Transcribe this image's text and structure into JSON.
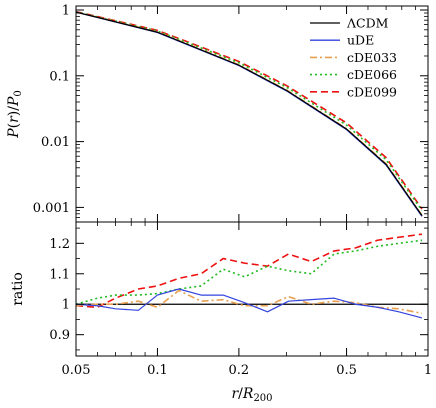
{
  "chart_data": [
    {
      "type": "line",
      "panel": "top",
      "ylabel": "P(r)/P0",
      "xscale": "log",
      "yscale": "log",
      "xlim": [
        0.05,
        1
      ],
      "ylim": [
        0.0006,
        1.15
      ],
      "yticks": [
        {
          "value": 1,
          "label": "1"
        },
        {
          "value": 0.1,
          "label": "0.1"
        },
        {
          "value": 0.01,
          "label": "0.01"
        },
        {
          "value": 0.001,
          "label": "0.001"
        }
      ],
      "legend_position": "top-right",
      "series": [
        {
          "name": "ΛCDM",
          "color": "#000000",
          "dash": "",
          "x": [
            0.05,
            0.1,
            0.2,
            0.3,
            0.5,
            0.7,
            0.95
          ],
          "y": [
            0.93,
            0.46,
            0.145,
            0.06,
            0.0155,
            0.0045,
            0.00075
          ]
        },
        {
          "name": "uDE",
          "color": "#3344dd",
          "dash": "",
          "x": [
            0.05,
            0.1,
            0.2,
            0.3,
            0.5,
            0.7,
            0.95
          ],
          "y": [
            0.93,
            0.455,
            0.143,
            0.059,
            0.0152,
            0.0044,
            0.00073
          ]
        },
        {
          "name": "cDE033",
          "color": "#e8a050",
          "dash": "7,3,2,3",
          "x": [
            0.05,
            0.1,
            0.2,
            0.3,
            0.5,
            0.7,
            0.95
          ],
          "y": [
            0.93,
            0.465,
            0.147,
            0.061,
            0.0157,
            0.0046,
            0.00076
          ]
        },
        {
          "name": "cDE066",
          "color": "#22bb22",
          "dash": "2,3",
          "x": [
            0.05,
            0.1,
            0.2,
            0.3,
            0.5,
            0.7,
            0.95
          ],
          "y": [
            0.94,
            0.48,
            0.158,
            0.067,
            0.0178,
            0.0053,
            0.0009
          ]
        },
        {
          "name": "cDE099",
          "color": "#ee1111",
          "dash": "7,4",
          "x": [
            0.05,
            0.1,
            0.2,
            0.3,
            0.5,
            0.7,
            0.95
          ],
          "y": [
            0.945,
            0.49,
            0.165,
            0.071,
            0.0192,
            0.0057,
            0.00095
          ]
        }
      ]
    },
    {
      "type": "line",
      "panel": "bottom",
      "xlabel": "r/R200",
      "ylabel": "ratio",
      "xscale": "log",
      "xlim": [
        0.05,
        1
      ],
      "ylim": [
        0.83,
        1.27
      ],
      "xticks": [
        {
          "value": 0.05,
          "label": "0.05"
        },
        {
          "value": 0.1,
          "label": "0.1"
        },
        {
          "value": 0.2,
          "label": "0.2"
        },
        {
          "value": 0.5,
          "label": "0.5"
        },
        {
          "value": 1,
          "label": "1"
        }
      ],
      "yticks": [
        {
          "value": 0.9,
          "label": "0.9"
        },
        {
          "value": 1.0,
          "label": "1"
        },
        {
          "value": 1.1,
          "label": "1.1"
        },
        {
          "value": 1.2,
          "label": "1.2"
        }
      ],
      "series": [
        {
          "name": "ΛCDM",
          "color": "#000000",
          "dash": "",
          "x": [
            0.05,
            1.0
          ],
          "y": [
            1.0,
            1.0
          ]
        },
        {
          "name": "uDE",
          "color": "#3344dd",
          "dash": "",
          "x": [
            0.05,
            0.06,
            0.07,
            0.085,
            0.1,
            0.12,
            0.145,
            0.175,
            0.21,
            0.255,
            0.305,
            0.37,
            0.45,
            0.54,
            0.65,
            0.78,
            0.95
          ],
          "y": [
            1.0,
            0.995,
            0.985,
            0.98,
            1.03,
            1.05,
            1.03,
            1.03,
            1.005,
            0.975,
            1.01,
            1.015,
            1.02,
            1.0,
            0.99,
            0.975,
            0.955
          ]
        },
        {
          "name": "cDE033",
          "color": "#e8a050",
          "dash": "7,3,2,3",
          "x": [
            0.05,
            0.06,
            0.07,
            0.085,
            0.1,
            0.12,
            0.145,
            0.175,
            0.21,
            0.255,
            0.305,
            0.37,
            0.45,
            0.54,
            0.65,
            0.78,
            0.95
          ],
          "y": [
            0.995,
            1.0,
            1.0,
            1.01,
            0.99,
            1.045,
            1.01,
            1.015,
            0.995,
            0.995,
            1.025,
            1.0,
            1.01,
            1.005,
            0.99,
            0.985,
            0.97
          ]
        },
        {
          "name": "cDE066",
          "color": "#22bb22",
          "dash": "2,3",
          "x": [
            0.05,
            0.06,
            0.07,
            0.085,
            0.1,
            0.12,
            0.145,
            0.175,
            0.21,
            0.255,
            0.305,
            0.37,
            0.45,
            0.54,
            0.65,
            0.78,
            0.95
          ],
          "y": [
            1.0,
            1.02,
            1.03,
            1.03,
            1.035,
            1.05,
            1.06,
            1.115,
            1.09,
            1.125,
            1.11,
            1.1,
            1.165,
            1.175,
            1.19,
            1.2,
            1.21
          ]
        },
        {
          "name": "cDE099",
          "color": "#ee1111",
          "dash": "7,4",
          "x": [
            0.05,
            0.06,
            0.07,
            0.085,
            0.1,
            0.12,
            0.145,
            0.175,
            0.21,
            0.255,
            0.305,
            0.37,
            0.45,
            0.54,
            0.65,
            0.78,
            0.95
          ],
          "y": [
            0.995,
            0.99,
            1.02,
            1.05,
            1.06,
            1.085,
            1.1,
            1.15,
            1.135,
            1.125,
            1.165,
            1.14,
            1.175,
            1.185,
            1.21,
            1.22,
            1.23
          ]
        }
      ]
    }
  ]
}
